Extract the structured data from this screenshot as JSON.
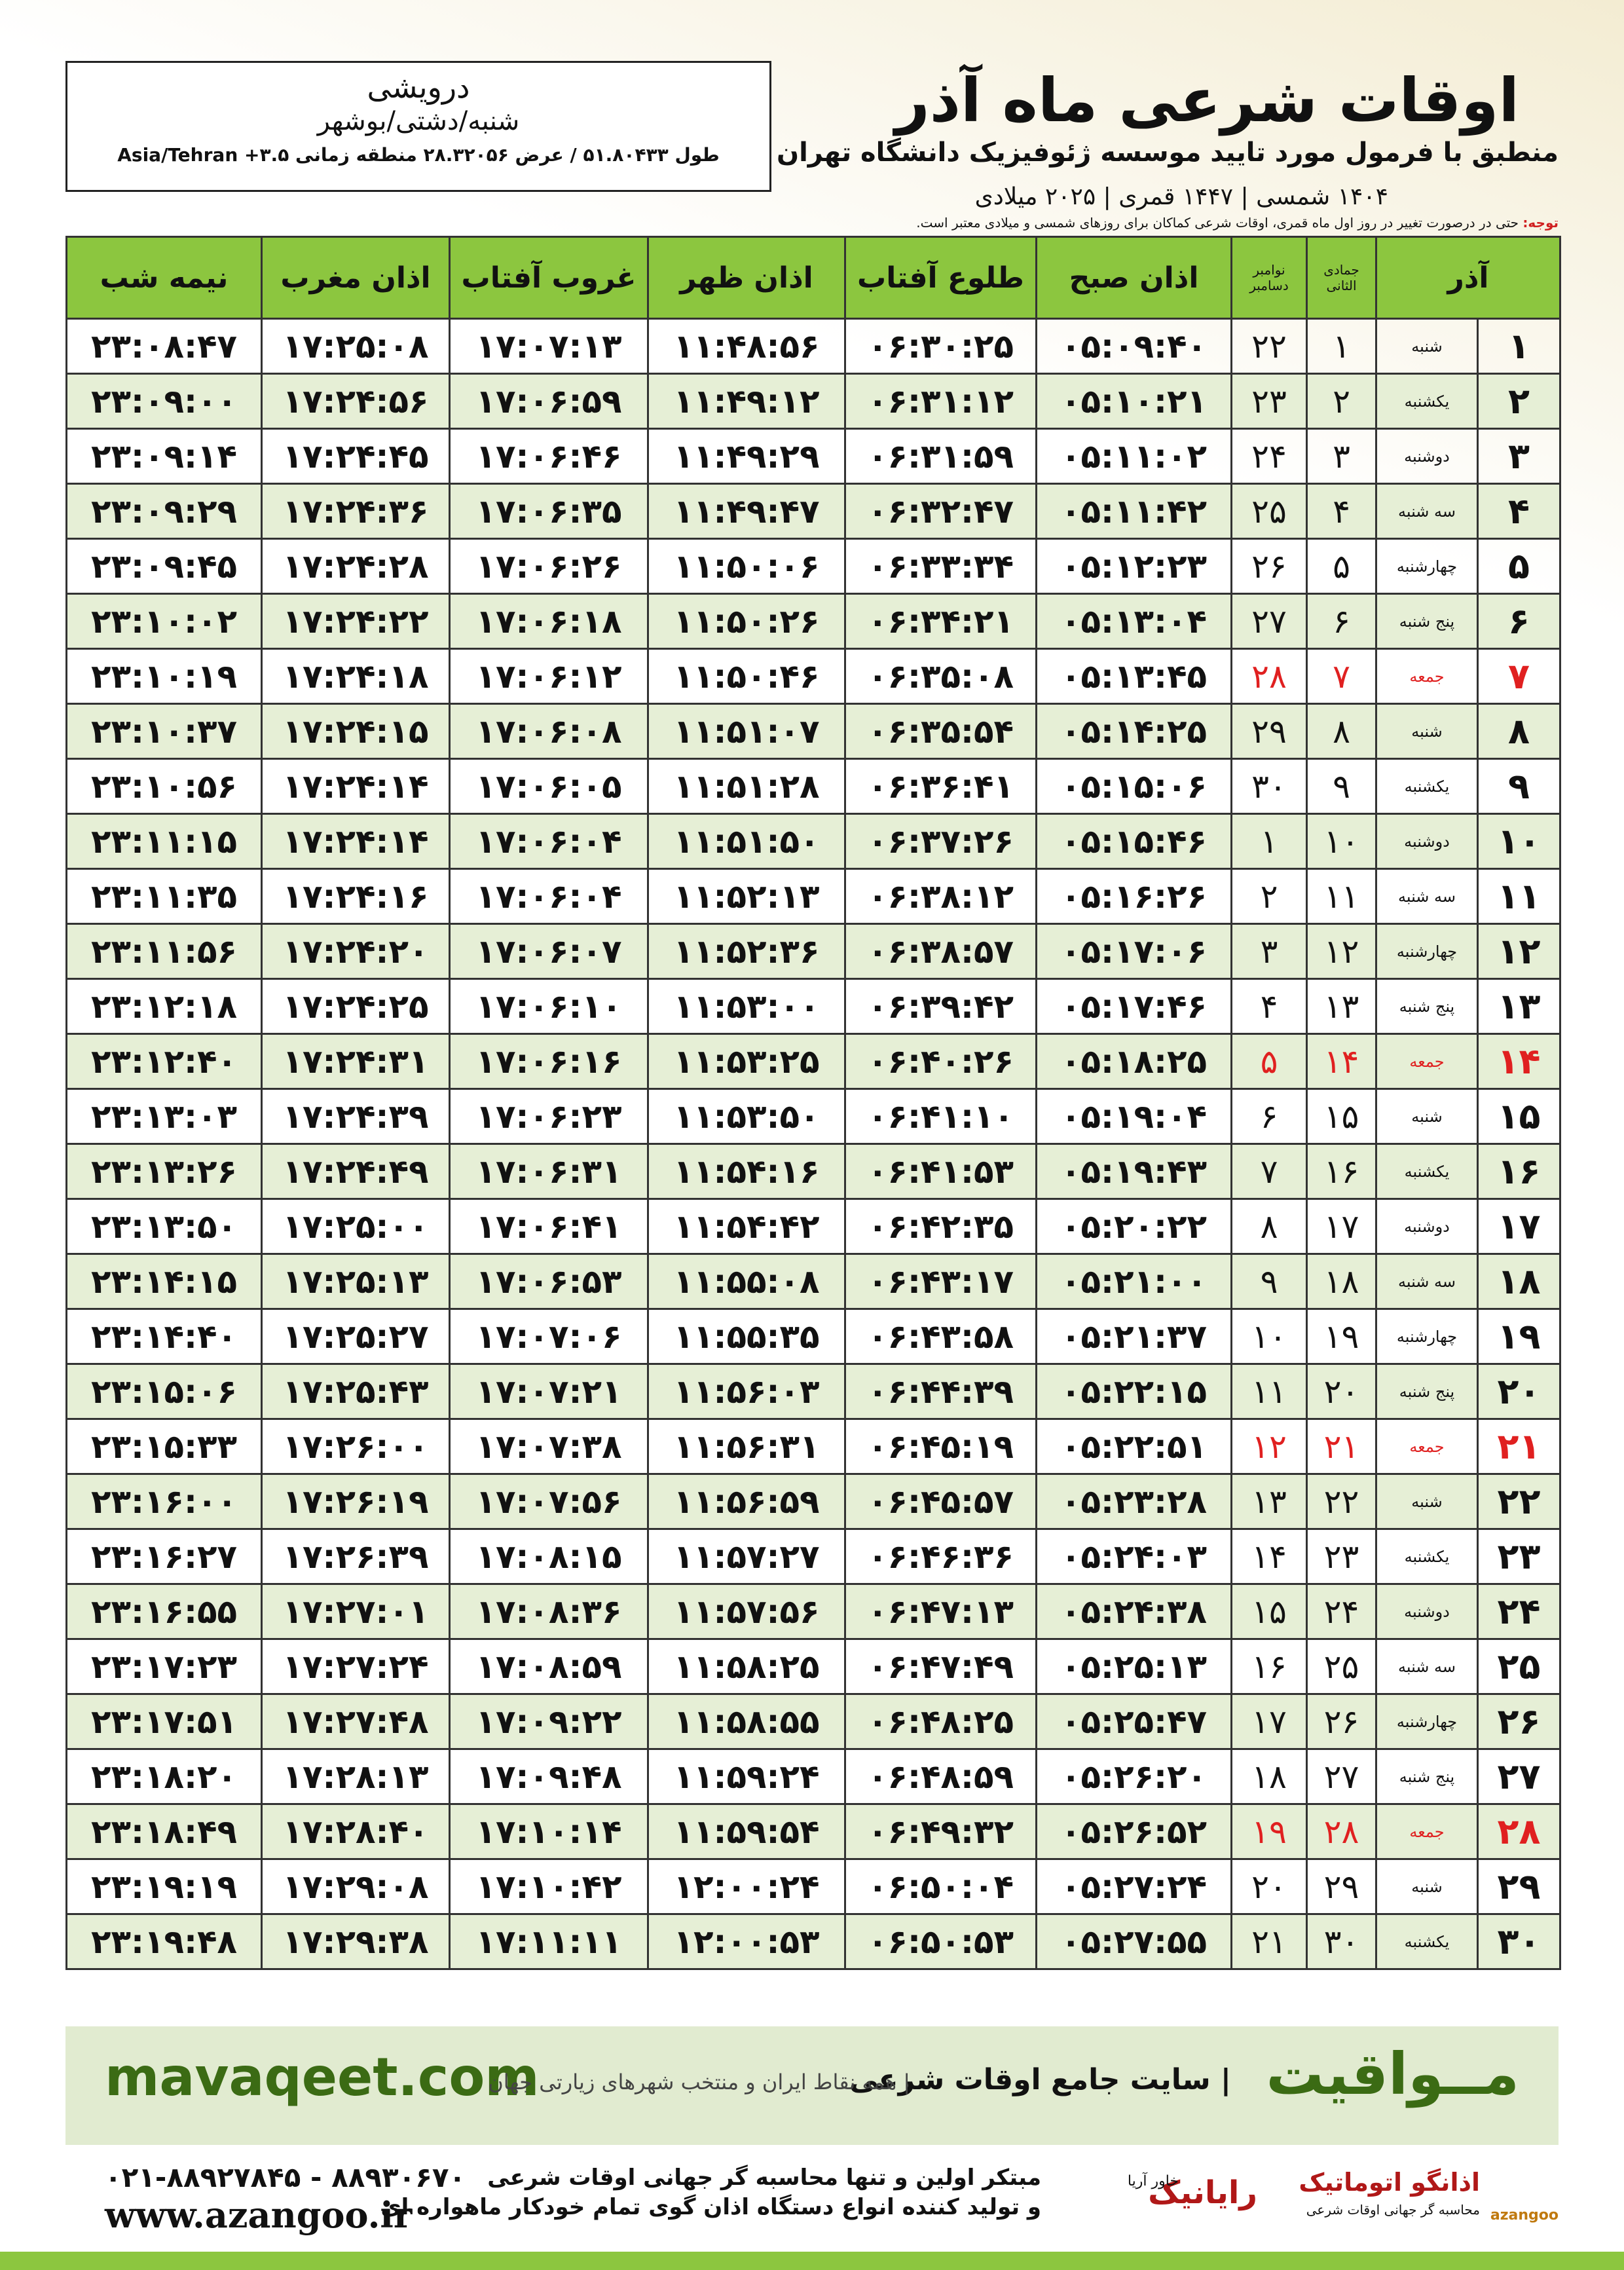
{
  "header": {
    "title": "اوقات شرعی ماه آذر",
    "subtitle": "منطبق با فرمول مورد تایید موسسه ژئوفیزیک دانشگاه تهران",
    "dates": "۱۴۰۴ شمسی | ۱۴۴۷ قمری | ۲۰۲۵ میلادی"
  },
  "location": {
    "name": "درویشی",
    "county": "شنبه/دشتی/بوشهر",
    "coordinates": "طول ۵۱.۸۰۴۳۳ / عرض ۲۸.۳۲۰۵۶ منطقه زمانی ۳.۵+ Asia/Tehran"
  },
  "note": {
    "label": "توجه:",
    "text": "حتی در درصورت تغییر در روز اول ماه قمری، اوقات شرعی کماکان برای روزهای شمسی و میلادی معتبر است."
  },
  "table": {
    "headers": {
      "azar": "آذر",
      "jumada": "جمادی الثانی",
      "november": "نوامبر",
      "december": "دسامبر",
      "fajr": "اذان صبح",
      "sunrise": "طلوع آفتاب",
      "dhuhr": "اذان ظهر",
      "sunset": "غروب آفتاب",
      "maghrib": "اذان مغرب",
      "midnight": "نیمه شب"
    },
    "rows": [
      {
        "cells": [
          "۱",
          "شنبه",
          "۱",
          "۲۲",
          "۰۵:۰۹:۴۰",
          "۰۶:۳۰:۲۵",
          "۱۱:۴۸:۵۶",
          "۱۷:۰۷:۱۳",
          "۱۷:۲۵:۰۸",
          "۲۳:۰۸:۴۷"
        ]
      },
      {
        "cells": [
          "۲",
          "یکشنبه",
          "۲",
          "۲۳",
          "۰۵:۱۰:۲۱",
          "۰۶:۳۱:۱۲",
          "۱۱:۴۹:۱۲",
          "۱۷:۰۶:۵۹",
          "۱۷:۲۴:۵۶",
          "۲۳:۰۹:۰۰"
        ]
      },
      {
        "cells": [
          "۳",
          "دوشنبه",
          "۳",
          "۲۴",
          "۰۵:۱۱:۰۲",
          "۰۶:۳۱:۵۹",
          "۱۱:۴۹:۲۹",
          "۱۷:۰۶:۴۶",
          "۱۷:۲۴:۴۵",
          "۲۳:۰۹:۱۴"
        ]
      },
      {
        "cells": [
          "۴",
          "سه شنبه",
          "۴",
          "۲۵",
          "۰۵:۱۱:۴۲",
          "۰۶:۳۲:۴۷",
          "۱۱:۴۹:۴۷",
          "۱۷:۰۶:۳۵",
          "۱۷:۲۴:۳۶",
          "۲۳:۰۹:۲۹"
        ]
      },
      {
        "cells": [
          "۵",
          "چهارشنبه",
          "۵",
          "۲۶",
          "۰۵:۱۲:۲۳",
          "۰۶:۳۳:۳۴",
          "۱۱:۵۰:۰۶",
          "۱۷:۰۶:۲۶",
          "۱۷:۲۴:۲۸",
          "۲۳:۰۹:۴۵"
        ]
      },
      {
        "cells": [
          "۶",
          "پنج شنبه",
          "۶",
          "۲۷",
          "۰۵:۱۳:۰۴",
          "۰۶:۳۴:۲۱",
          "۱۱:۵۰:۲۶",
          "۱۷:۰۶:۱۸",
          "۱۷:۲۴:۲۲",
          "۲۳:۱۰:۰۲"
        ]
      },
      {
        "cells": [
          "۷",
          "جمعه",
          "۷",
          "۲۸",
          "۰۵:۱۳:۴۵",
          "۰۶:۳۵:۰۸",
          "۱۱:۵۰:۴۶",
          "۱۷:۰۶:۱۲",
          "۱۷:۲۴:۱۸",
          "۲۳:۱۰:۱۹"
        ],
        "color": "#e02020"
      },
      {
        "cells": [
          "۸",
          "شنبه",
          "۸",
          "۲۹",
          "۰۵:۱۴:۲۵",
          "۰۶:۳۵:۵۴",
          "۱۱:۵۱:۰۷",
          "۱۷:۰۶:۰۸",
          "۱۷:۲۴:۱۵",
          "۲۳:۱۰:۳۷"
        ]
      },
      {
        "cells": [
          "۹",
          "یکشنبه",
          "۹",
          "۳۰",
          "۰۵:۱۵:۰۶",
          "۰۶:۳۶:۴۱",
          "۱۱:۵۱:۲۸",
          "۱۷:۰۶:۰۵",
          "۱۷:۲۴:۱۴",
          "۲۳:۱۰:۵۶"
        ]
      },
      {
        "cells": [
          "۱۰",
          "دوشنبه",
          "۱۰",
          "۱",
          "۰۵:۱۵:۴۶",
          "۰۶:۳۷:۲۶",
          "۱۱:۵۱:۵۰",
          "۱۷:۰۶:۰۴",
          "۱۷:۲۴:۱۴",
          "۲۳:۱۱:۱۵"
        ]
      },
      {
        "cells": [
          "۱۱",
          "سه شنبه",
          "۱۱",
          "۲",
          "۰۵:۱۶:۲۶",
          "۰۶:۳۸:۱۲",
          "۱۱:۵۲:۱۳",
          "۱۷:۰۶:۰۴",
          "۱۷:۲۴:۱۶",
          "۲۳:۱۱:۳۵"
        ]
      },
      {
        "cells": [
          "۱۲",
          "چهارشنبه",
          "۱۲",
          "۳",
          "۰۵:۱۷:۰۶",
          "۰۶:۳۸:۵۷",
          "۱۱:۵۲:۳۶",
          "۱۷:۰۶:۰۷",
          "۱۷:۲۴:۲۰",
          "۲۳:۱۱:۵۶"
        ]
      },
      {
        "cells": [
          "۱۳",
          "پنج شنبه",
          "۱۳",
          "۴",
          "۰۵:۱۷:۴۶",
          "۰۶:۳۹:۴۲",
          "۱۱:۵۳:۰۰",
          "۱۷:۰۶:۱۰",
          "۱۷:۲۴:۲۵",
          "۲۳:۱۲:۱۸"
        ]
      },
      {
        "cells": [
          "۱۴",
          "جمعه",
          "۱۴",
          "۵",
          "۰۵:۱۸:۲۵",
          "۰۶:۴۰:۲۶",
          "۱۱:۵۳:۲۵",
          "۱۷:۰۶:۱۶",
          "۱۷:۲۴:۳۱",
          "۲۳:۱۲:۴۰"
        ],
        "color": "#e02020"
      },
      {
        "cells": [
          "۱۵",
          "شنبه",
          "۱۵",
          "۶",
          "۰۵:۱۹:۰۴",
          "۰۶:۴۱:۱۰",
          "۱۱:۵۳:۵۰",
          "۱۷:۰۶:۲۳",
          "۱۷:۲۴:۳۹",
          "۲۳:۱۳:۰۳"
        ]
      },
      {
        "cells": [
          "۱۶",
          "یکشنبه",
          "۱۶",
          "۷",
          "۰۵:۱۹:۴۳",
          "۰۶:۴۱:۵۳",
          "۱۱:۵۴:۱۶",
          "۱۷:۰۶:۳۱",
          "۱۷:۲۴:۴۹",
          "۲۳:۱۳:۲۶"
        ]
      },
      {
        "cells": [
          "۱۷",
          "دوشنبه",
          "۱۷",
          "۸",
          "۰۵:۲۰:۲۲",
          "۰۶:۴۲:۳۵",
          "۱۱:۵۴:۴۲",
          "۱۷:۰۶:۴۱",
          "۱۷:۲۵:۰۰",
          "۲۳:۱۳:۵۰"
        ]
      },
      {
        "cells": [
          "۱۸",
          "سه شنبه",
          "۱۸",
          "۹",
          "۰۵:۲۱:۰۰",
          "۰۶:۴۳:۱۷",
          "۱۱:۵۵:۰۸",
          "۱۷:۰۶:۵۳",
          "۱۷:۲۵:۱۳",
          "۲۳:۱۴:۱۵"
        ]
      },
      {
        "cells": [
          "۱۹",
          "چهارشنبه",
          "۱۹",
          "۱۰",
          "۰۵:۲۱:۳۷",
          "۰۶:۴۳:۵۸",
          "۱۱:۵۵:۳۵",
          "۱۷:۰۷:۰۶",
          "۱۷:۲۵:۲۷",
          "۲۳:۱۴:۴۰"
        ]
      },
      {
        "cells": [
          "۲۰",
          "پنج شنبه",
          "۲۰",
          "۱۱",
          "۰۵:۲۲:۱۵",
          "۰۶:۴۴:۳۹",
          "۱۱:۵۶:۰۳",
          "۱۷:۰۷:۲۱",
          "۱۷:۲۵:۴۳",
          "۲۳:۱۵:۰۶"
        ]
      },
      {
        "cells": [
          "۲۱",
          "جمعه",
          "۲۱",
          "۱۲",
          "۰۵:۲۲:۵۱",
          "۰۶:۴۵:۱۹",
          "۱۱:۵۶:۳۱",
          "۱۷:۰۷:۳۸",
          "۱۷:۲۶:۰۰",
          "۲۳:۱۵:۳۳"
        ],
        "color": "#e02020"
      },
      {
        "cells": [
          "۲۲",
          "شنبه",
          "۲۲",
          "۱۳",
          "۰۵:۲۳:۲۸",
          "۰۶:۴۵:۵۷",
          "۱۱:۵۶:۵۹",
          "۱۷:۰۷:۵۶",
          "۱۷:۲۶:۱۹",
          "۲۳:۱۶:۰۰"
        ]
      },
      {
        "cells": [
          "۲۳",
          "یکشنبه",
          "۲۳",
          "۱۴",
          "۰۵:۲۴:۰۳",
          "۰۶:۴۶:۳۶",
          "۱۱:۵۷:۲۷",
          "۱۷:۰۸:۱۵",
          "۱۷:۲۶:۳۹",
          "۲۳:۱۶:۲۷"
        ]
      },
      {
        "cells": [
          "۲۴",
          "دوشنبه",
          "۲۴",
          "۱۵",
          "۰۵:۲۴:۳۸",
          "۰۶:۴۷:۱۳",
          "۱۱:۵۷:۵۶",
          "۱۷:۰۸:۳۶",
          "۱۷:۲۷:۰۱",
          "۲۳:۱۶:۵۵"
        ]
      },
      {
        "cells": [
          "۲۵",
          "سه شنبه",
          "۲۵",
          "۱۶",
          "۰۵:۲۵:۱۳",
          "۰۶:۴۷:۴۹",
          "۱۱:۵۸:۲۵",
          "۱۷:۰۸:۵۹",
          "۱۷:۲۷:۲۴",
          "۲۳:۱۷:۲۳"
        ]
      },
      {
        "cells": [
          "۲۶",
          "چهارشنبه",
          "۲۶",
          "۱۷",
          "۰۵:۲۵:۴۷",
          "۰۶:۴۸:۲۵",
          "۱۱:۵۸:۵۵",
          "۱۷:۰۹:۲۲",
          "۱۷:۲۷:۴۸",
          "۲۳:۱۷:۵۱"
        ]
      },
      {
        "cells": [
          "۲۷",
          "پنج شنبه",
          "۲۷",
          "۱۸",
          "۰۵:۲۶:۲۰",
          "۰۶:۴۸:۵۹",
          "۱۱:۵۹:۲۴",
          "۱۷:۰۹:۴۸",
          "۱۷:۲۸:۱۳",
          "۲۳:۱۸:۲۰"
        ]
      },
      {
        "cells": [
          "۲۸",
          "جمعه",
          "۲۸",
          "۱۹",
          "۰۵:۲۶:۵۲",
          "۰۶:۴۹:۳۲",
          "۱۱:۵۹:۵۴",
          "۱۷:۱۰:۱۴",
          "۱۷:۲۸:۴۰",
          "۲۳:۱۸:۴۹"
        ],
        "color": "#e02020"
      },
      {
        "cells": [
          "۲۹",
          "شنبه",
          "۲۹",
          "۲۰",
          "۰۵:۲۷:۲۴",
          "۰۶:۵۰:۰۴",
          "۱۲:۰۰:۲۴",
          "۱۷:۱۰:۴۲",
          "۱۷:۲۹:۰۸",
          "۲۳:۱۹:۱۹"
        ]
      },
      {
        "cells": [
          "۳۰",
          "یکشنبه",
          "۳۰",
          "۲۱",
          "۰۵:۲۷:۵۵",
          "۰۶:۵۰:۵۳",
          "۱۲:۰۰:۵۳",
          "۱۷:۱۱:۱۱",
          "۱۷:۲۹:۳۸",
          "۲۳:۱۹:۴۸"
        ]
      }
    ]
  },
  "banner": {
    "site": "mavaqeet.com",
    "brand": "مــواقیت",
    "slogan": "| سایت جامع اوقات شرعی",
    "regions": "| همه نقاط ایران و منتخب شهرهای زیارتی جهان"
  },
  "footer": {
    "phone": "۰۲۱-۸۸۹۲۷۸۴۵ - ۸۸۹۳۰۶۷۰",
    "website": "www.azangoo.ir",
    "line1": "مبتکر اولین و تنها محاسبه گر جهانی اوقات شرعی",
    "line2": "و تولید کننده انواع دستگاه اذان گوی تمام خودکار ماهواره ای",
    "logo_azangoo": "اذانگو اتوماتیک",
    "logo_azangoo_sub": "محاسبه گر جهانی اوقات شرعی",
    "logo_azangoo_en": "azangoo",
    "logo_rayanik": "رایانیک",
    "logo_rayanik_sub": "خاور آریا"
  }
}
